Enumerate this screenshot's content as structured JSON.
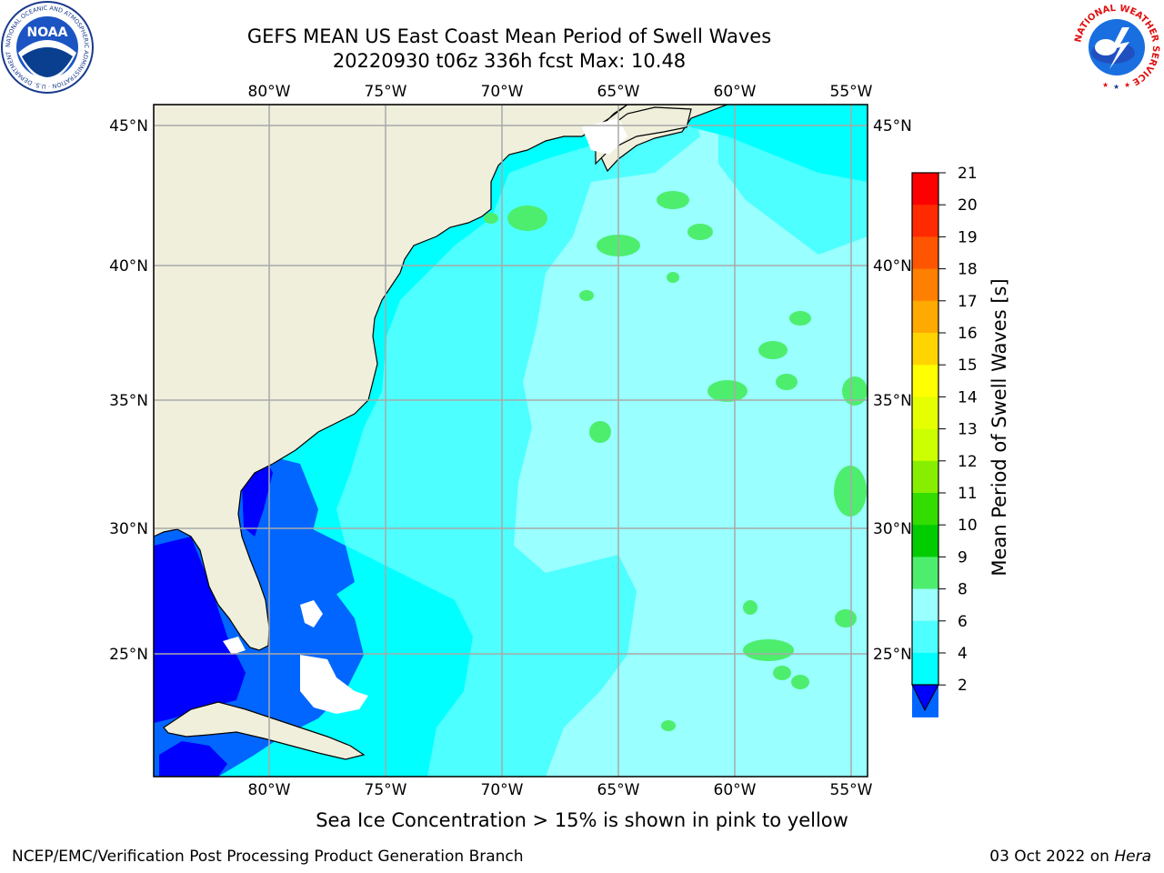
{
  "header": {
    "title_line1": "GEFS MEAN US East Coast Mean Period of Swell Waves",
    "title_line2": "20220930 t06z 336h fcst   Max: 10.48"
  },
  "logos": {
    "noaa_text": "NOAA",
    "noaa_ring_text": "NATIONAL OCEANIC AND ATMOSPHERIC ADMINISTRATION · U.S. DEPARTMENT OF COMMERCE",
    "nws_ring_text": "NATIONAL WEATHER SERVICE"
  },
  "map": {
    "lon_labels": [
      "80°W",
      "75°W",
      "70°W",
      "65°W",
      "60°W",
      "55°W"
    ],
    "lat_labels": [
      "45°N",
      "40°N",
      "35°N",
      "30°N",
      "25°N"
    ],
    "colors": {
      "land": "#efefdc",
      "grid": "#a9a9a9",
      "c2_4": "#0066ff",
      "c4_6": "#00ffff",
      "c6_8": "#4dffff",
      "c8_9": "#99ffff",
      "c9_10": "#4dee6e",
      "below_2": "#0000ff"
    }
  },
  "colorbar": {
    "label": "Mean Period of Swell Waves [s]",
    "ticks": [
      "21",
      "20",
      "19",
      "18",
      "17",
      "16",
      "15",
      "14",
      "13",
      "12",
      "11",
      "10",
      "9",
      "8",
      "6",
      "4",
      "2"
    ],
    "colors": [
      "#ff0000",
      "#ff2a00",
      "#ff5500",
      "#ff7f00",
      "#ffaa00",
      "#ffd400",
      "#ffff00",
      "#e6ff00",
      "#ccff00",
      "#88ee00",
      "#33dd00",
      "#00cc00",
      "#4dee6e",
      "#99ffff",
      "#4dffff",
      "#00ffff",
      "#0066ff"
    ],
    "extend_color": "#0000ff"
  },
  "footer": {
    "note": "Sea Ice Concentration > 15% is shown in pink to yellow",
    "credit": "NCEP/EMC/Verification Post Processing Product Generation Branch",
    "date": "03 Oct 2022 on",
    "host": "Hera"
  }
}
